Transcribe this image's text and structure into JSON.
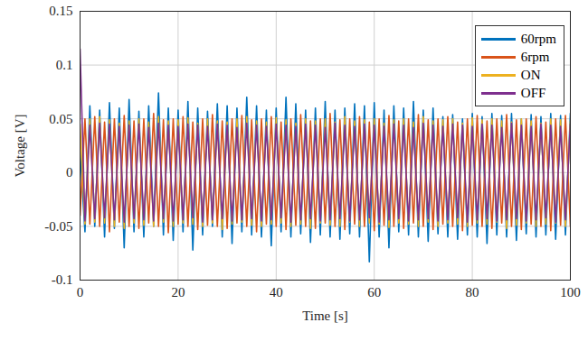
{
  "chart_data": {
    "type": "line",
    "xlabel": "Time [s]",
    "ylabel": "Voltage [V]",
    "xlim": [
      0,
      100
    ],
    "xticks": [
      0,
      20,
      40,
      60,
      80,
      100
    ],
    "ylim": [
      -0.1,
      0.15
    ],
    "yticks": [
      -0.1,
      -0.05,
      0,
      0.05,
      0.1,
      0.15
    ],
    "grid": true,
    "legend": "northeast",
    "x": [
      0,
      1,
      2,
      3,
      4,
      5,
      6,
      7,
      8,
      9,
      10,
      11,
      12,
      13,
      14,
      15,
      16,
      17,
      18,
      19,
      20,
      21,
      22,
      23,
      24,
      25,
      26,
      27,
      28,
      29,
      30,
      31,
      32,
      33,
      34,
      35,
      36,
      37,
      38,
      39,
      40,
      41,
      42,
      43,
      44,
      45,
      46,
      47,
      48,
      49,
      50,
      51,
      52,
      53,
      54,
      55,
      56,
      57,
      58,
      59,
      60,
      61,
      62,
      63,
      64,
      65,
      66,
      67,
      68,
      69,
      70,
      71,
      72,
      73,
      74,
      75,
      76,
      77,
      78,
      79,
      80,
      81,
      82,
      83,
      84,
      85,
      86,
      87,
      88,
      89,
      90,
      91,
      92,
      93,
      94,
      95,
      96,
      97,
      98,
      99,
      100
    ],
    "series": [
      {
        "name": "60rpm",
        "color": "#0072BD",
        "values": [
          0.02,
          -0.055,
          0.062,
          -0.05,
          0.058,
          -0.06,
          0.065,
          -0.052,
          0.06,
          -0.07,
          0.068,
          -0.055,
          0.057,
          -0.06,
          0.062,
          -0.05,
          0.074,
          -0.058,
          0.06,
          -0.063,
          0.058,
          -0.055,
          0.066,
          -0.072,
          0.06,
          -0.058,
          0.057,
          -0.05,
          0.064,
          -0.06,
          0.062,
          -0.066,
          0.06,
          -0.055,
          0.07,
          -0.058,
          0.062,
          -0.06,
          0.058,
          -0.068,
          0.06,
          -0.055,
          0.07,
          -0.06,
          0.064,
          -0.057,
          0.058,
          -0.065,
          0.06,
          -0.058,
          0.066,
          -0.06,
          0.058,
          -0.062,
          0.06,
          -0.057,
          0.064,
          -0.06,
          0.062,
          -0.083,
          0.065,
          -0.06,
          0.058,
          -0.07,
          0.062,
          -0.055,
          0.06,
          -0.058,
          0.066,
          -0.06,
          0.058,
          -0.064,
          0.06,
          -0.057,
          0.052,
          -0.06,
          0.054,
          -0.062,
          0.05,
          -0.058,
          0.055,
          -0.06,
          0.052,
          -0.066,
          0.055,
          -0.058,
          0.053,
          -0.06,
          0.055,
          -0.063,
          0.05,
          -0.057,
          0.054,
          -0.06,
          0.052,
          -0.058,
          0.055,
          -0.062,
          0.053,
          -0.058,
          0.055
        ]
      },
      {
        "name": "6rpm",
        "color": "#D95319",
        "values": [
          -0.04,
          0.05,
          -0.048,
          0.052,
          -0.05,
          0.047,
          -0.055,
          0.05,
          -0.046,
          0.053,
          -0.05,
          0.048,
          -0.052,
          0.05,
          -0.047,
          0.055,
          -0.05,
          0.049,
          -0.056,
          0.05,
          -0.048,
          0.052,
          -0.05,
          0.047,
          -0.053,
          0.05,
          -0.049,
          0.054,
          -0.05,
          0.048,
          -0.052,
          0.05,
          -0.047,
          0.053,
          -0.05,
          0.049,
          -0.055,
          0.05,
          -0.048,
          0.052,
          -0.05,
          0.047,
          -0.053,
          0.05,
          -0.049,
          0.054,
          -0.05,
          0.048,
          -0.052,
          0.05,
          -0.047,
          0.055,
          -0.05,
          0.049,
          -0.053,
          0.05,
          -0.048,
          0.052,
          -0.05,
          0.047,
          -0.054,
          0.05,
          -0.049,
          0.053,
          -0.05,
          0.048,
          -0.052,
          0.05,
          -0.047,
          0.054,
          -0.05,
          0.049,
          -0.053,
          0.05,
          -0.048,
          0.052,
          -0.05,
          0.047,
          -0.054,
          0.05,
          -0.049,
          0.053,
          -0.05,
          0.048,
          -0.052,
          0.05,
          -0.047,
          0.054,
          -0.05,
          0.049,
          -0.053,
          0.05,
          -0.048,
          0.052,
          -0.05,
          0.047,
          -0.054,
          0.05,
          -0.049,
          0.053,
          -0.05
        ]
      },
      {
        "name": "ON",
        "color": "#EDB120",
        "values": [
          0.045,
          -0.048,
          0.05,
          -0.046,
          0.052,
          -0.047,
          0.049,
          -0.05,
          0.046,
          -0.052,
          0.048,
          -0.047,
          0.05,
          -0.049,
          0.047,
          -0.05,
          0.052,
          -0.046,
          0.048,
          -0.05,
          0.049,
          -0.047,
          0.051,
          -0.048,
          0.046,
          -0.05,
          0.05,
          -0.047,
          0.048,
          -0.053,
          0.047,
          -0.048,
          0.05,
          -0.046,
          0.052,
          -0.049,
          0.048,
          -0.05,
          0.047,
          -0.048,
          0.051,
          -0.047,
          0.049,
          -0.05,
          0.046,
          -0.048,
          0.05,
          -0.052,
          0.048,
          -0.047,
          0.05,
          -0.049,
          0.047,
          -0.05,
          0.052,
          -0.046,
          0.048,
          -0.05,
          0.049,
          -0.047,
          0.05,
          -0.048,
          0.046,
          -0.051,
          0.049,
          -0.047,
          0.05,
          -0.048,
          0.047,
          -0.05,
          0.052,
          -0.046,
          0.048,
          -0.05,
          0.049,
          -0.047,
          0.05,
          -0.048,
          0.046,
          -0.05,
          0.051,
          -0.047,
          0.049,
          -0.048,
          0.05,
          -0.046,
          0.048,
          -0.052,
          0.047,
          -0.049,
          0.05,
          -0.047,
          0.048,
          -0.05,
          0.046,
          -0.048,
          0.05,
          -0.047,
          0.049,
          -0.05,
          0.048
        ]
      },
      {
        "name": "OFF",
        "color": "#7E2F8E",
        "values": [
          0.115,
          -0.045,
          0.044,
          -0.043,
          0.046,
          -0.042,
          0.045,
          -0.044,
          0.043,
          -0.046,
          0.044,
          -0.043,
          0.045,
          -0.044,
          0.042,
          -0.045,
          0.046,
          -0.043,
          0.044,
          -0.045,
          0.043,
          -0.044,
          0.045,
          -0.042,
          0.044,
          -0.046,
          0.043,
          -0.044,
          0.045,
          -0.043,
          0.044,
          -0.045,
          0.042,
          -0.044,
          0.046,
          -0.043,
          0.044,
          -0.045,
          0.043,
          -0.044,
          0.045,
          -0.042,
          0.044,
          -0.046,
          0.043,
          -0.044,
          0.045,
          -0.043,
          0.044,
          -0.045,
          0.042,
          -0.044,
          0.046,
          -0.043,
          0.044,
          -0.045,
          0.043,
          -0.044,
          0.045,
          -0.042,
          0.044,
          -0.046,
          0.043,
          -0.044,
          0.045,
          -0.043,
          0.044,
          -0.045,
          0.042,
          -0.044,
          0.046,
          -0.043,
          0.044,
          -0.045,
          0.043,
          -0.044,
          0.045,
          -0.042,
          0.044,
          -0.046,
          0.043,
          -0.044,
          0.045,
          -0.043,
          0.044,
          -0.045,
          0.042,
          -0.044,
          0.046,
          -0.043,
          0.044,
          -0.045,
          0.043,
          -0.044,
          0.045,
          -0.042,
          0.044,
          -0.046,
          0.043,
          -0.044,
          0.045
        ]
      }
    ]
  }
}
